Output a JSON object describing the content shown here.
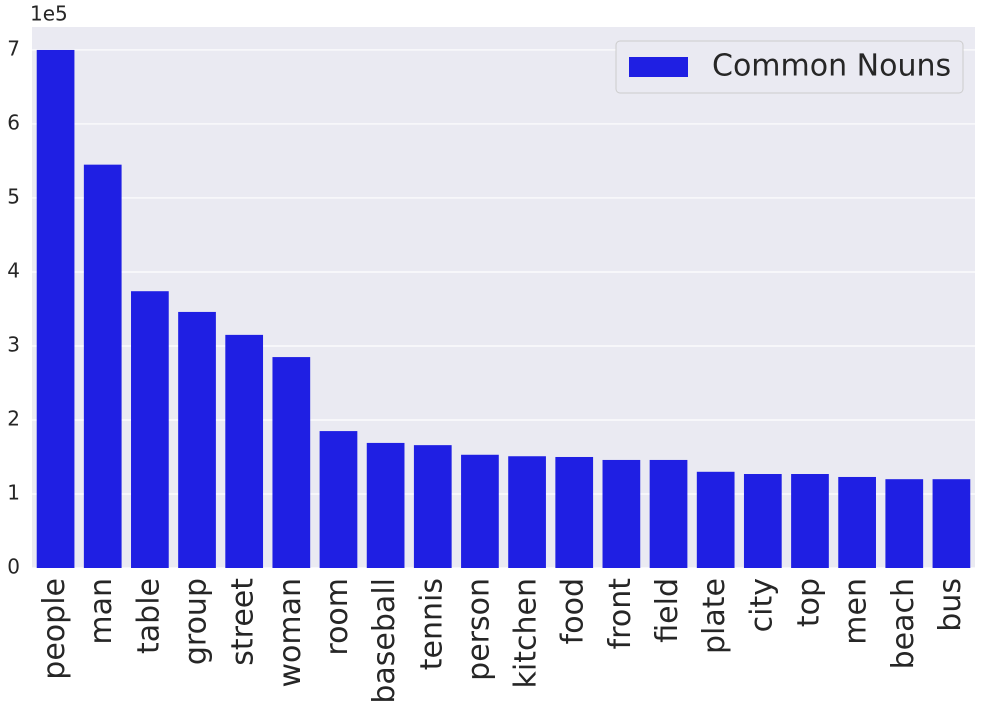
{
  "chart_data": {
    "type": "bar",
    "offset_label": "1e5",
    "categories": [
      "people",
      "man",
      "table",
      "group",
      "street",
      "woman",
      "room",
      "baseball",
      "tennis",
      "person",
      "kitchen",
      "food",
      "front",
      "field",
      "plate",
      "city",
      "top",
      "men",
      "beach",
      "bus"
    ],
    "series": [
      {
        "name": "Common Nouns",
        "color": "#1f1fe3",
        "values": [
          7.0,
          5.45,
          3.74,
          3.46,
          3.15,
          2.85,
          1.85,
          1.69,
          1.66,
          1.53,
          1.51,
          1.5,
          1.46,
          1.46,
          1.3,
          1.27,
          1.27,
          1.23,
          1.2,
          1.2
        ]
      }
    ],
    "ylim": [
      0,
      7.31
    ],
    "yticks": [
      0,
      1,
      2,
      3,
      4,
      5,
      6,
      7
    ],
    "grid": true,
    "legend": "upper right"
  }
}
